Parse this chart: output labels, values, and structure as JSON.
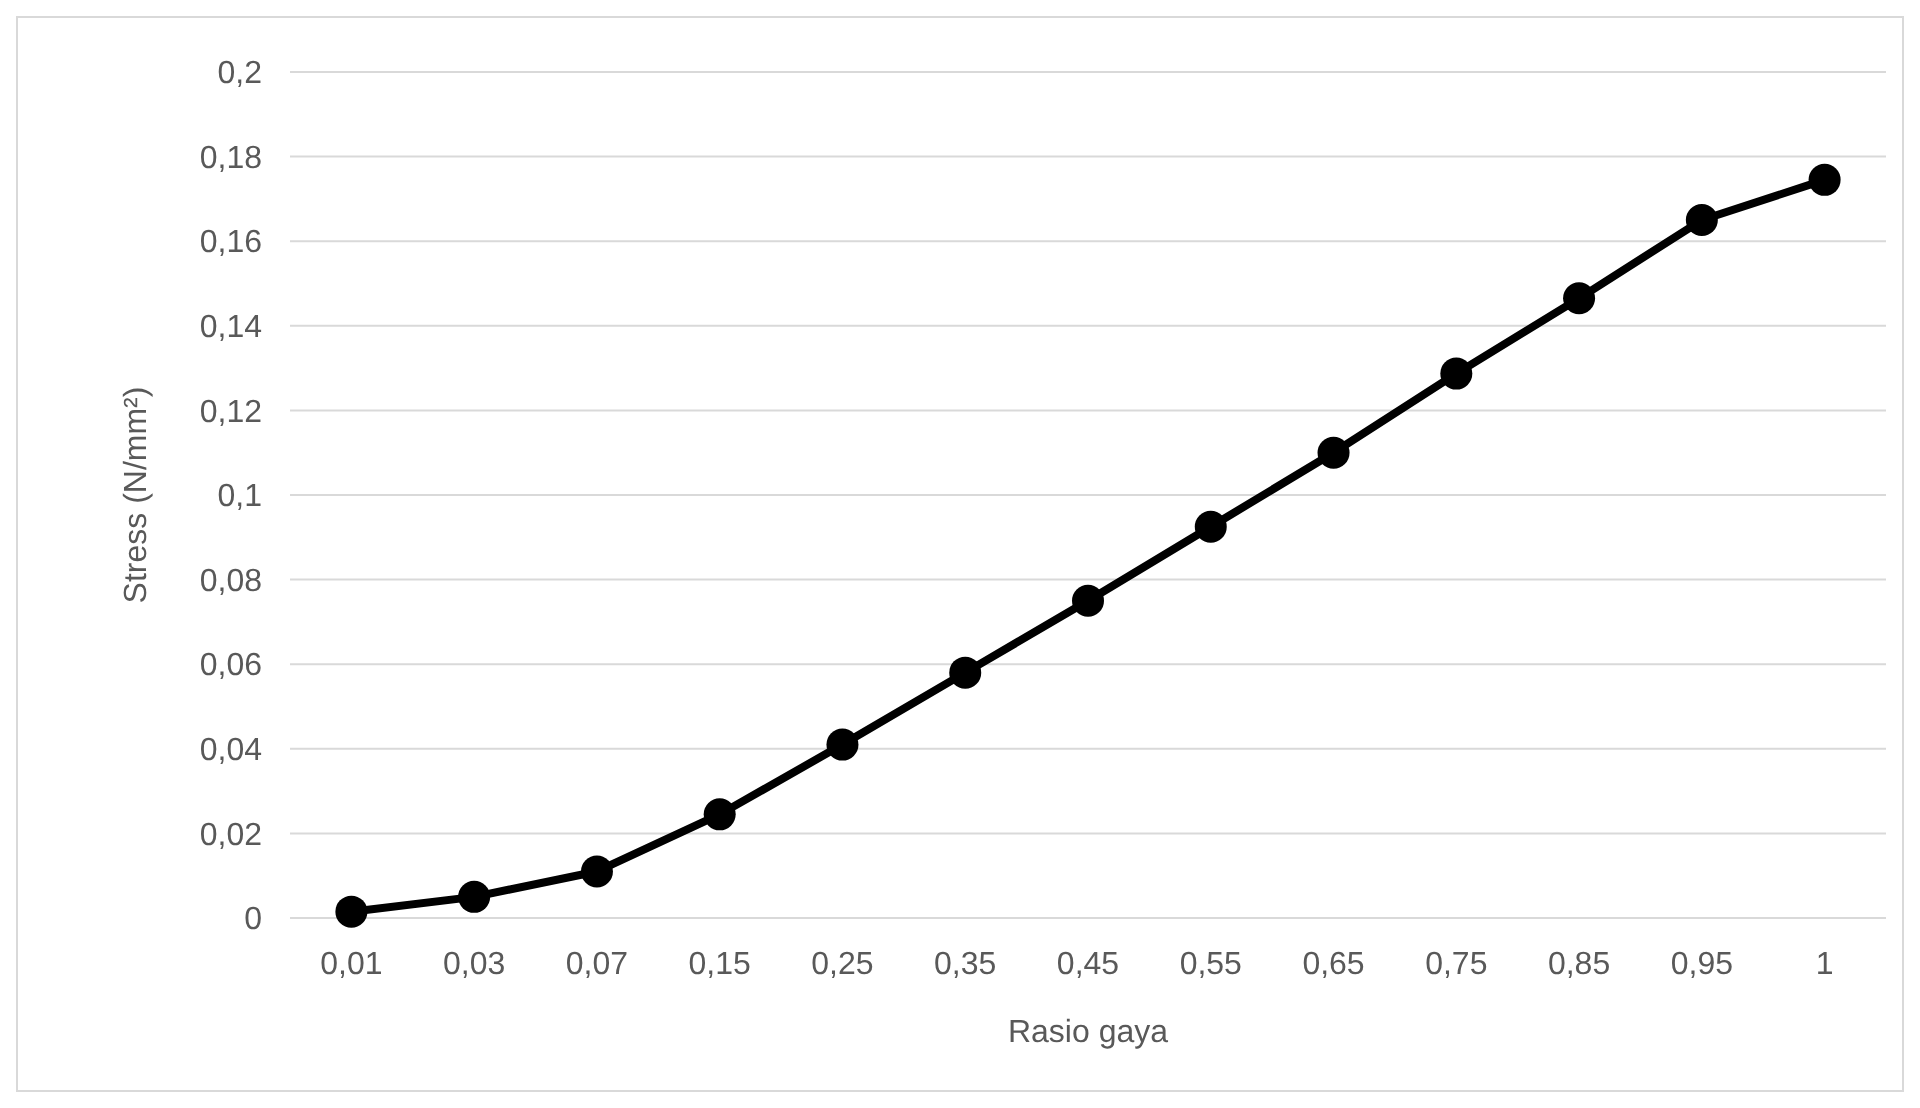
{
  "chart_data": {
    "type": "line",
    "xlabel": "Rasio gaya",
    "ylabel": "Stress (N/mm²)",
    "categories": [
      "0,01",
      "0,03",
      "0,07",
      "0,15",
      "0,25",
      "0,35",
      "0,45",
      "0,55",
      "0,65",
      "0,75",
      "0,85",
      "0,95",
      "1"
    ],
    "series": [
      {
        "color": "#000000",
        "values": [
          0.0015,
          0.005,
          0.011,
          0.0245,
          0.041,
          0.058,
          0.075,
          0.0925,
          0.11,
          0.1287,
          0.1465,
          0.165,
          0.1745
        ]
      }
    ],
    "ylim": [
      0,
      0.2
    ],
    "yticks": [
      0,
      {
        "value": 0.02,
        "label": "0,02"
      },
      {
        "value": 0.04,
        "label": "0,04"
      },
      {
        "value": 0.06,
        "label": "0,06"
      },
      {
        "value": 0.08,
        "label": "0,08"
      },
      {
        "value": 0.1,
        "label": "0,1"
      },
      {
        "value": 0.12,
        "label": "0,12"
      },
      {
        "value": 0.14,
        "label": "0,14"
      },
      {
        "value": 0.16,
        "label": "0,16"
      },
      {
        "value": 0.18,
        "label": "0,18"
      },
      {
        "value": 0.2,
        "label": "0,2"
      }
    ],
    "grid": "y",
    "marker": "circle",
    "line_style": "solid"
  }
}
